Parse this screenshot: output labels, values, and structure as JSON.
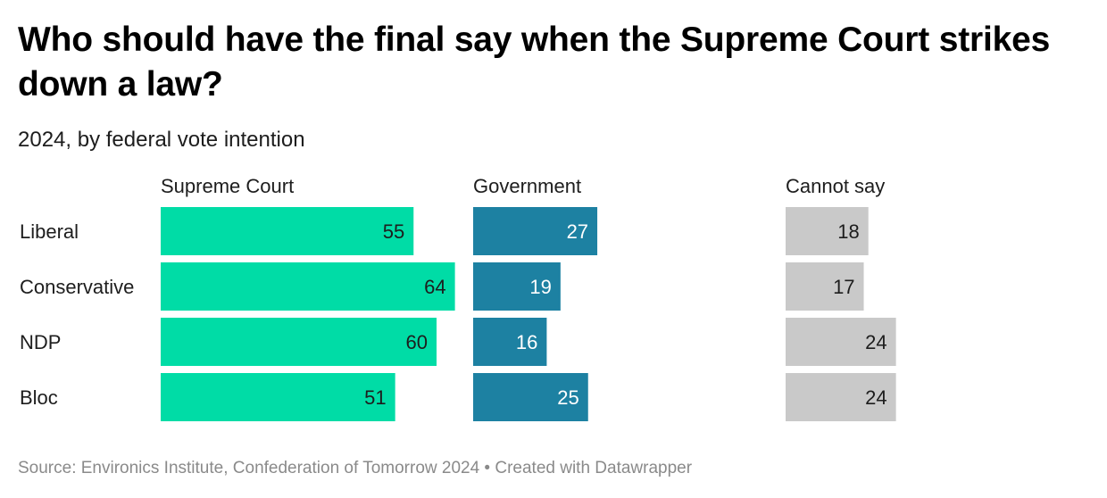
{
  "title": "Who should have the final say when the Supreme Court strikes down a law?",
  "subtitle": "2024, by federal vote intention",
  "source": "Source: Environics Institute, Confederation of Tomorrow 2024 • Created with Datawrapper",
  "chart_data": {
    "type": "bar",
    "orientation": "horizontal",
    "categories": [
      "Liberal",
      "Conservative",
      "NDP",
      "Bloc"
    ],
    "series": [
      {
        "name": "Supreme Court",
        "values": [
          55,
          64,
          60,
          51
        ],
        "color": "#00dca6",
        "label_color": "#1d1d1d"
      },
      {
        "name": "Government",
        "values": [
          27,
          19,
          16,
          25
        ],
        "color": "#1d81a2",
        "label_color": "#ffffff"
      },
      {
        "name": "Cannot say",
        "values": [
          18,
          17,
          24,
          24
        ],
        "color": "#c9c9c9",
        "label_color": "#1d1d1d"
      }
    ],
    "xlim": [
      0,
      64
    ],
    "grid": false,
    "legend": "column headers"
  }
}
